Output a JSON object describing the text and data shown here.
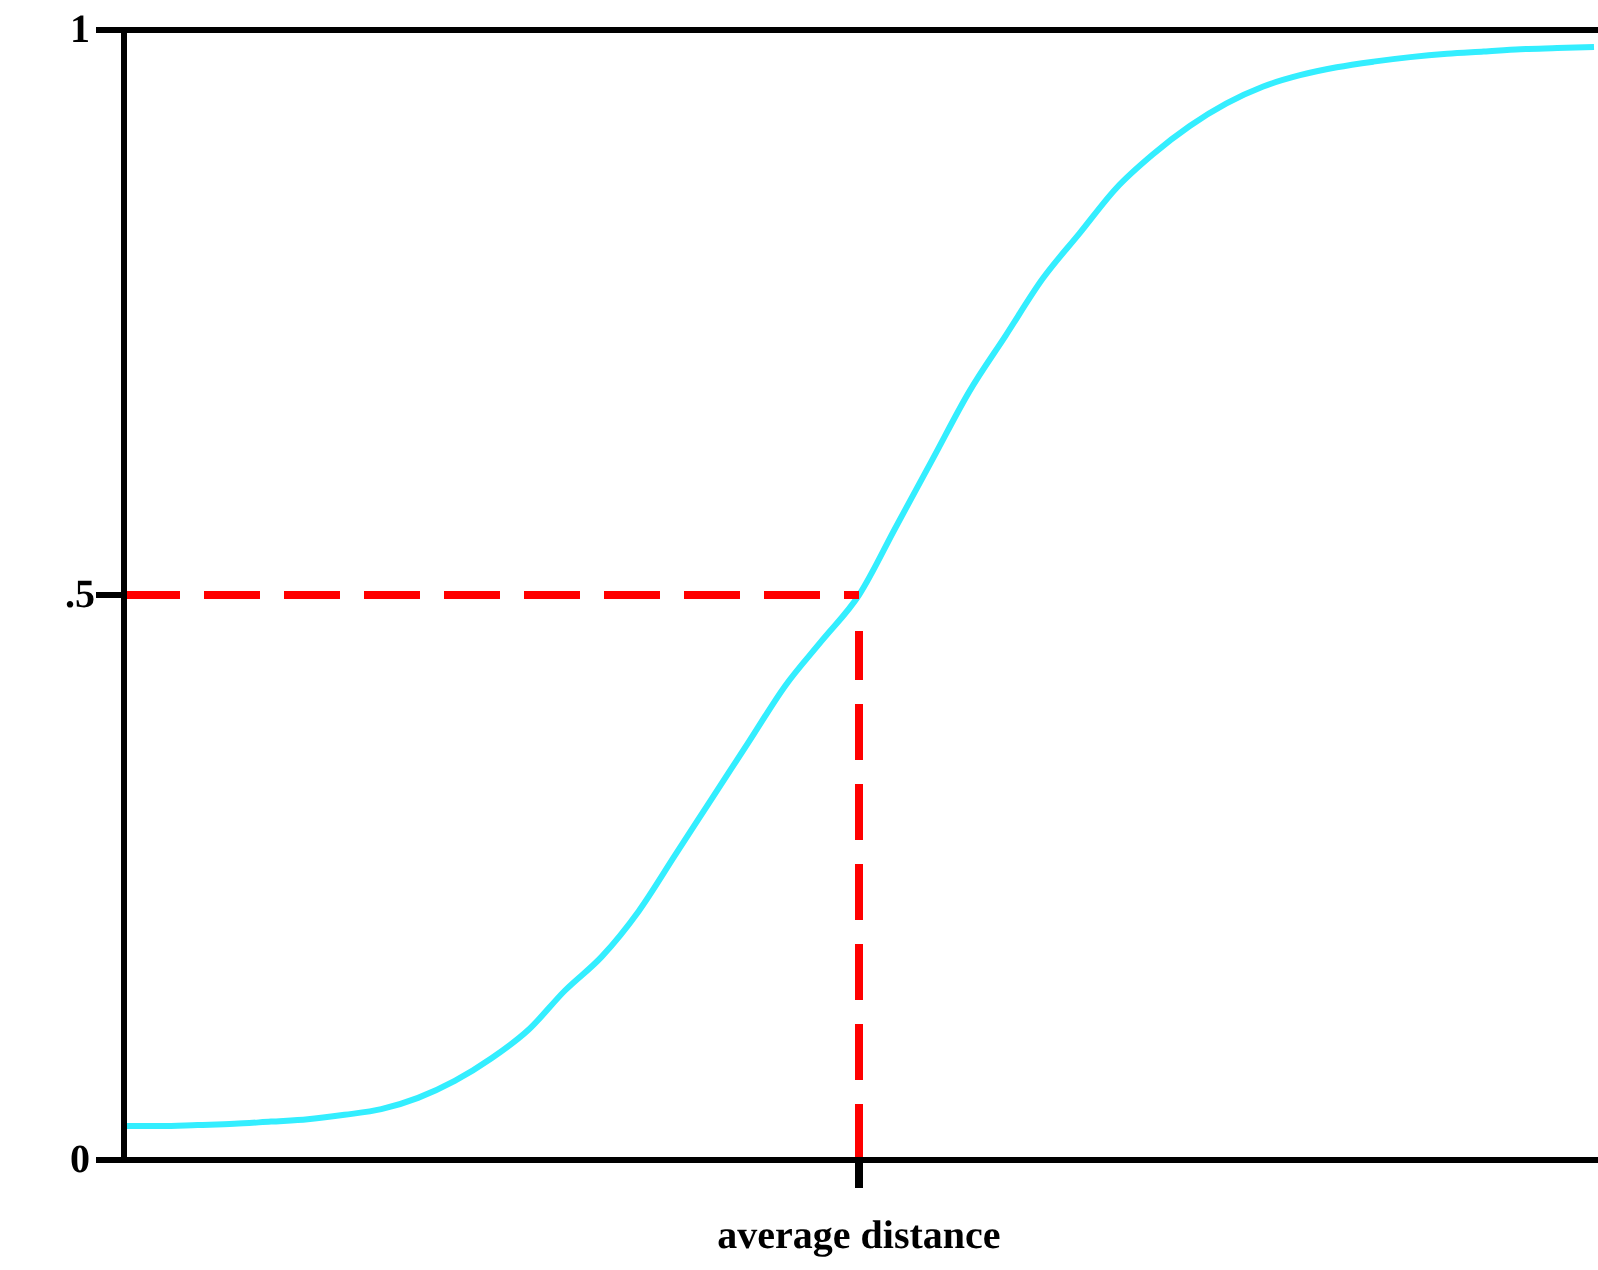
{
  "chart_data": {
    "type": "line",
    "categories": [
      null,
      null,
      null,
      null,
      null,
      null,
      null,
      null,
      null,
      null,
      null,
      null,
      null,
      null,
      null,
      null,
      null,
      null,
      null,
      null,
      "average distance",
      null,
      null,
      null,
      null,
      null,
      null,
      null,
      null,
      null,
      null,
      null,
      null,
      null,
      null,
      null,
      null,
      null,
      null,
      null,
      null
    ],
    "values": [
      0.03,
      0.03,
      0.031,
      0.032,
      0.034,
      0.036,
      0.04,
      0.045,
      0.055,
      0.07,
      0.09,
      0.115,
      0.15,
      0.18,
      0.22,
      0.27,
      0.32,
      0.37,
      0.42,
      0.46,
      0.5,
      0.56,
      0.62,
      0.68,
      0.73,
      0.78,
      0.82,
      0.86,
      0.89,
      0.915,
      0.935,
      0.95,
      0.96,
      0.967,
      0.972,
      0.976,
      0.979,
      0.981,
      0.983,
      0.984,
      0.985
    ],
    "color": "#33eeff",
    "ylim": [
      0,
      1
    ],
    "yticks": [
      0,
      {
        "value": 0.5,
        "label": ".5"
      },
      1
    ],
    "ref_lines": [
      {
        "axis": "y",
        "value": 0.5,
        "color": "#ff0000",
        "line_style": "dashed"
      },
      {
        "axis": "x",
        "value": "average distance",
        "color": "#ff0000",
        "line_style": "dashed"
      }
    ]
  }
}
